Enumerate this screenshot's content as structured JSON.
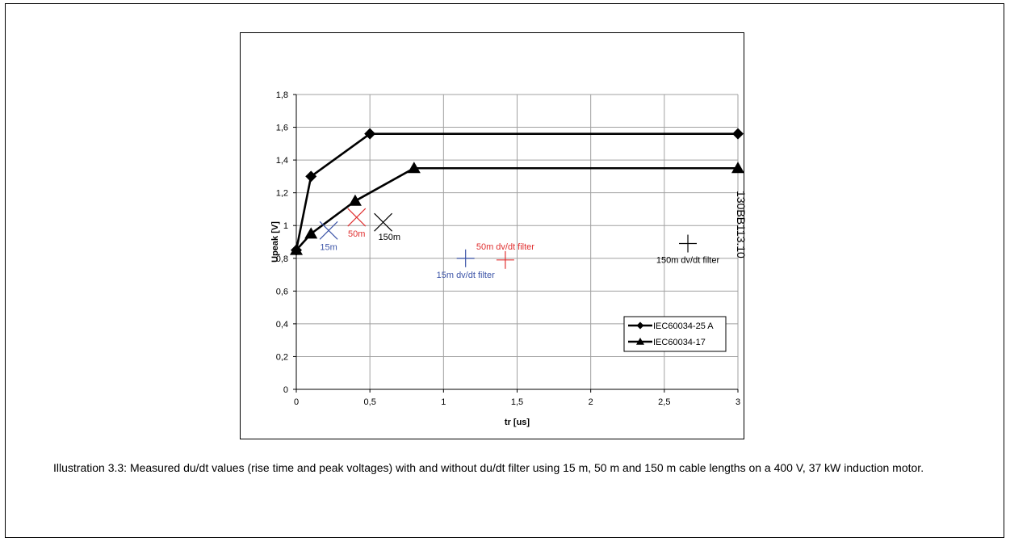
{
  "caption": "Illustration 3.3: Measured du/dt values (rise time and peak voltages) with and without du/dt filter using 15 m, 50 m and 150 m cable lengths on a 400 V, 37 kW induction motor.",
  "document_id": "130BB113.10",
  "chart_data": {
    "type": "line",
    "title": "",
    "xlabel": "tr [us]",
    "ylabel": "Upeak [V]",
    "xlim": [
      0,
      3
    ],
    "ylim": [
      0,
      1.8
    ],
    "x_ticks": [
      "0",
      "0,5",
      "1",
      "1,5",
      "2",
      "2,5",
      "3"
    ],
    "x_tick_values": [
      0,
      0.5,
      1,
      1.5,
      2,
      2.5,
      3
    ],
    "y_ticks": [
      "0",
      "0,2",
      "0,4",
      "0,6",
      "0,8",
      "1",
      "1,2",
      "1,4",
      "1,6",
      "1,8"
    ],
    "y_tick_values": [
      0,
      0.2,
      0.4,
      0.6,
      0.8,
      1.0,
      1.2,
      1.4,
      1.6,
      1.8
    ],
    "grid": true,
    "legend_position": "bottom-right",
    "series": [
      {
        "name": "IEC60034-25 A",
        "marker": "diamond",
        "color": "#000000",
        "x": [
          0,
          0.1,
          0.5,
          3
        ],
        "y": [
          0.85,
          1.3,
          1.56,
          1.56
        ]
      },
      {
        "name": "IEC60034-17",
        "marker": "triangle",
        "color": "#000000",
        "x": [
          0,
          0.1,
          0.4,
          0.8,
          3
        ],
        "y": [
          0.85,
          0.95,
          1.15,
          1.35,
          1.35
        ]
      }
    ],
    "points": [
      {
        "label": "15m",
        "marker": "x",
        "color": "#3d55a8",
        "x": 0.22,
        "y": 0.97,
        "label_pos": "below"
      },
      {
        "label": "50m",
        "marker": "x",
        "color": "#e03030",
        "x": 0.41,
        "y": 1.05,
        "label_pos": "below"
      },
      {
        "label": "150m",
        "marker": "x",
        "color": "#000000",
        "x": 0.59,
        "y": 1.02,
        "label_pos": "below-right"
      },
      {
        "label": "15m dv/dt filter",
        "marker": "plus",
        "color": "#3d55a8",
        "x": 1.15,
        "y": 0.8,
        "label_pos": "below"
      },
      {
        "label": "50m dv/dt filter",
        "marker": "plus",
        "color": "#e03030",
        "x": 1.42,
        "y": 0.79,
        "label_pos": "above"
      },
      {
        "label": "150m dv/dt filter",
        "marker": "plus",
        "color": "#000000",
        "x": 2.66,
        "y": 0.89,
        "label_pos": "below"
      }
    ]
  }
}
